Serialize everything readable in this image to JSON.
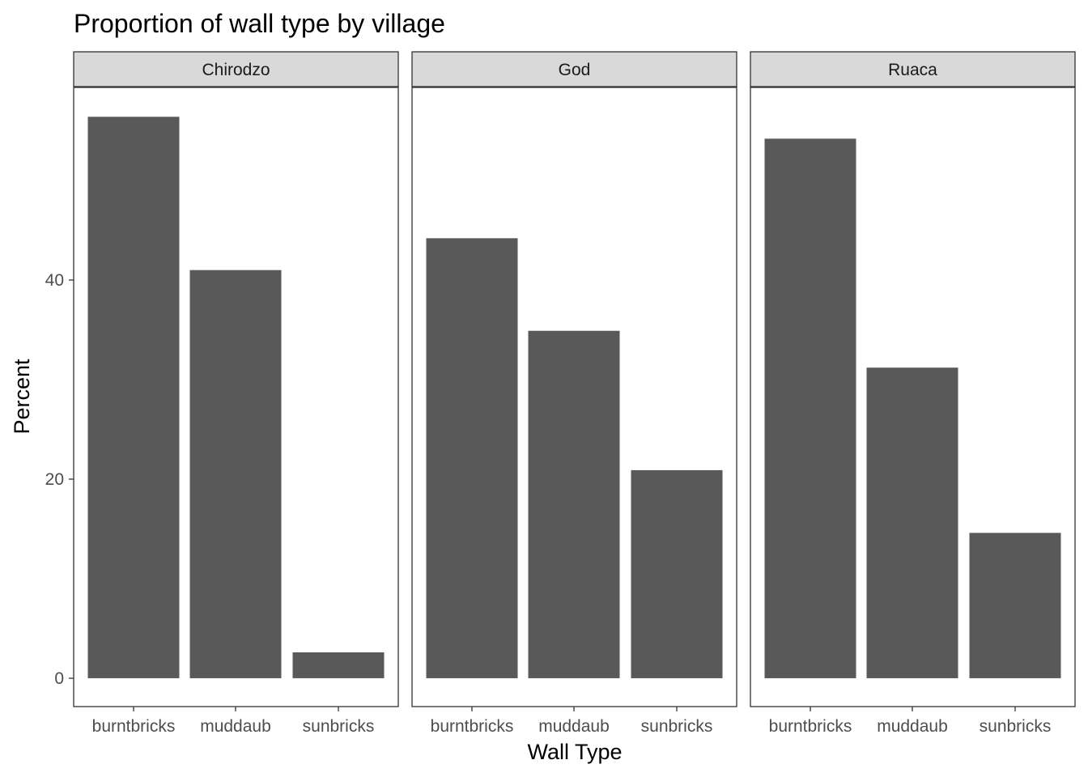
{
  "chart_data": {
    "type": "bar",
    "title": "Proportion of wall type by village",
    "xlabel": "Wall Type",
    "ylabel": "Percent",
    "ylim": [
      -2.85,
      59.35
    ],
    "yticks": [
      0,
      20,
      40
    ],
    "grid": false,
    "bar_color": "#595959",
    "categories": [
      "burntbricks",
      "muddaub",
      "sunbricks"
    ],
    "facets": [
      {
        "name": "Chirodzo",
        "values": [
          56.4,
          41.0,
          2.6
        ]
      },
      {
        "name": "God",
        "values": [
          44.2,
          34.9,
          20.9
        ]
      },
      {
        "name": "Ruaca",
        "values": [
          54.2,
          31.2,
          14.6
        ]
      }
    ]
  }
}
